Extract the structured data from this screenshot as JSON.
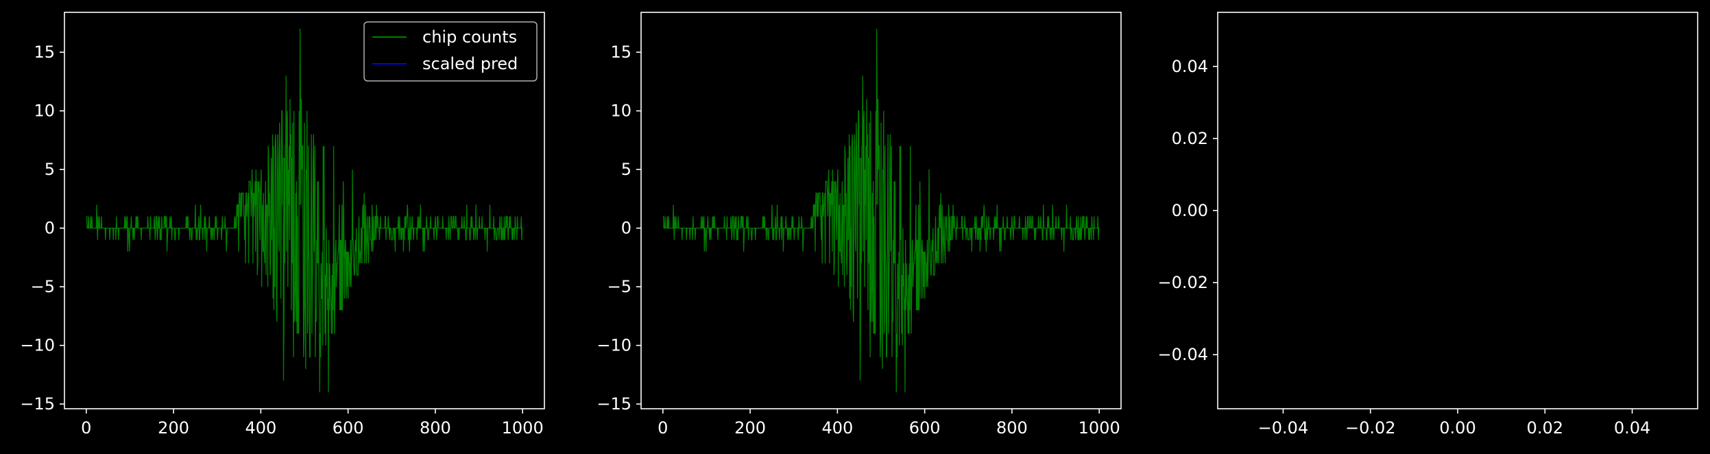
{
  "figure": {
    "background": "#000000",
    "foreground": "#ffffff"
  },
  "chart_data": [
    {
      "type": "line",
      "title": "",
      "xlabel": "",
      "ylabel": "",
      "xlim": [
        -50,
        1050
      ],
      "ylim": [
        -15.4,
        18.4
      ],
      "xticks": [
        0,
        200,
        400,
        600,
        800,
        1000
      ],
      "xtick_labels": [
        "0",
        "200",
        "400",
        "600",
        "800",
        "1000"
      ],
      "yticks": [
        -15,
        -10,
        -5,
        0,
        5,
        10,
        15
      ],
      "ytick_labels": [
        "−15",
        "−10",
        "−5",
        "0",
        "5",
        "10",
        "15"
      ],
      "grid": false,
      "legend": {
        "placement": "top-right",
        "entries": [
          {
            "label": "chip counts",
            "color": "#008000"
          },
          {
            "label": "scaled pred",
            "color": "#0000ff"
          }
        ]
      },
      "series": [
        {
          "name": "chip counts",
          "color": "#008000",
          "x_range": [
            0,
            1000
          ],
          "x_step": 1,
          "description_values": "sparse integer counts: mostly 0 with ±1 spikes outside ~340–680, bursts up to 17 and down to -14 between ~350 and ~660",
          "peak_max": 17,
          "peak_min": -14
        },
        {
          "name": "scaled pred",
          "color": "#0000ff",
          "values": []
        }
      ]
    },
    {
      "type": "line",
      "title": "",
      "xlabel": "",
      "ylabel": "",
      "xlim": [
        -50,
        1050
      ],
      "ylim": [
        -15.4,
        18.4
      ],
      "xticks": [
        0,
        200,
        400,
        600,
        800,
        1000
      ],
      "xtick_labels": [
        "0",
        "200",
        "400",
        "600",
        "800",
        "1000"
      ],
      "yticks": [
        -15,
        -10,
        -5,
        0,
        5,
        10,
        15
      ],
      "ytick_labels": [
        "−15",
        "−10",
        "−5",
        "0",
        "5",
        "10",
        "15"
      ],
      "grid": false,
      "series": [
        {
          "color": "#008000",
          "x_range": [
            0,
            1000
          ],
          "x_step": 1,
          "peak_max": 17,
          "peak_min": -14
        }
      ]
    },
    {
      "type": "line",
      "title": "",
      "xlabel": "",
      "ylabel": "",
      "xlim": [
        -0.055,
        0.055
      ],
      "ylim": [
        -0.055,
        0.055
      ],
      "xticks": [
        -0.04,
        -0.02,
        0,
        0.02,
        0.04
      ],
      "xtick_labels": [
        "−0.04",
        "−0.02",
        "0.00",
        "0.02",
        "0.04"
      ],
      "yticks": [
        -0.04,
        -0.02,
        0,
        0.02,
        0.04
      ],
      "ytick_labels": [
        "−0.04",
        "−0.02",
        "0.00",
        "0.02",
        "0.04"
      ],
      "grid": false,
      "series": []
    }
  ]
}
